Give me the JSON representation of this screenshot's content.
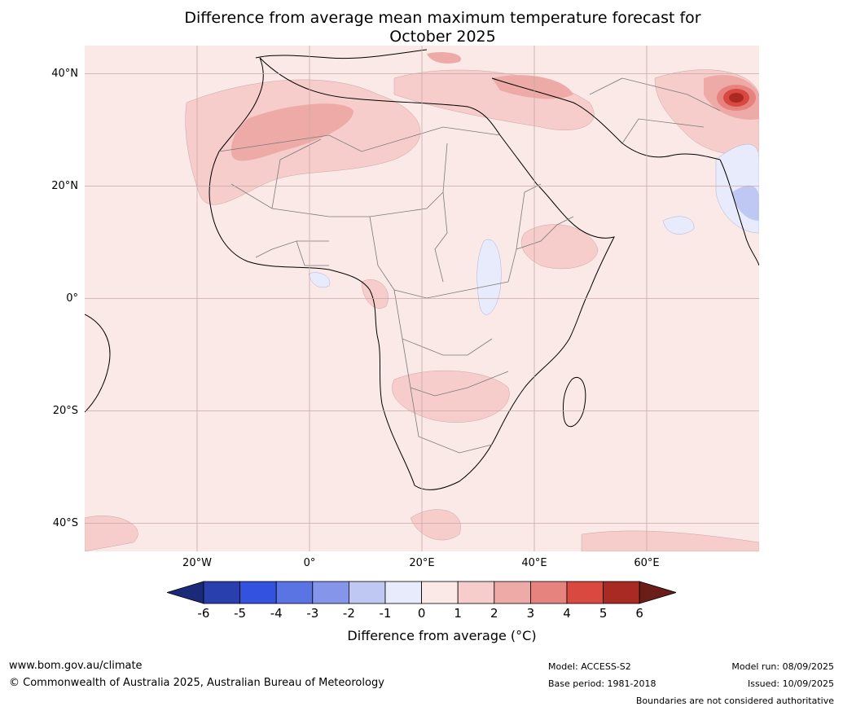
{
  "title_line1": "Difference from average mean maximum temperature forecast for",
  "title_line2": "October 2025",
  "lat_labels": [
    {
      "label": "40°N",
      "lat": 40
    },
    {
      "label": "20°N",
      "lat": 20
    },
    {
      "label": "0°",
      "lat": 0
    },
    {
      "label": "20°S",
      "lat": -20
    },
    {
      "label": "40°S",
      "lat": -40
    }
  ],
  "lon_labels": [
    {
      "label": "20°W",
      "lon": -20
    },
    {
      "label": "0°",
      "lon": 0
    },
    {
      "label": "20°E",
      "lon": 20
    },
    {
      "label": "40°E",
      "lon": 40
    },
    {
      "label": "60°E",
      "lon": 60
    }
  ],
  "colorbar": {
    "ticks": [
      "-6",
      "-5",
      "-4",
      "-3",
      "-2",
      "-1",
      "0",
      "1",
      "2",
      "3",
      "4",
      "5",
      "6"
    ],
    "colors": {
      "below_-6": "#1b2a78",
      "-6_-5": "#2a3fae",
      "-5_-4": "#3352e0",
      "-4_-3": "#5b74e3",
      "-3_-2": "#8596ea",
      "-2_-1": "#bfc7f3",
      "-1_0": "#e8ebfb",
      "0_1": "#fbe9e7",
      "1_2": "#f6cdca",
      "2_3": "#eeaaa7",
      "3_4": "#e7837f",
      "4_5": "#d9493f",
      "5_6": "#a82a23",
      "above_6": "#6b1e18"
    },
    "label": "Difference from average (°C)"
  },
  "footer": {
    "url": "www.bom.gov.au/climate",
    "copyright": "© Commonwealth of Australia 2025, Australian Bureau of Meteorology",
    "model": "Model: ACCESS-S2",
    "base_period": "Base period: 1981-2018",
    "model_run": "Model run: 08/09/2025",
    "issued": "Issued: 10/09/2025",
    "disclaimer": "Boundaries are not considered authoritative"
  }
}
